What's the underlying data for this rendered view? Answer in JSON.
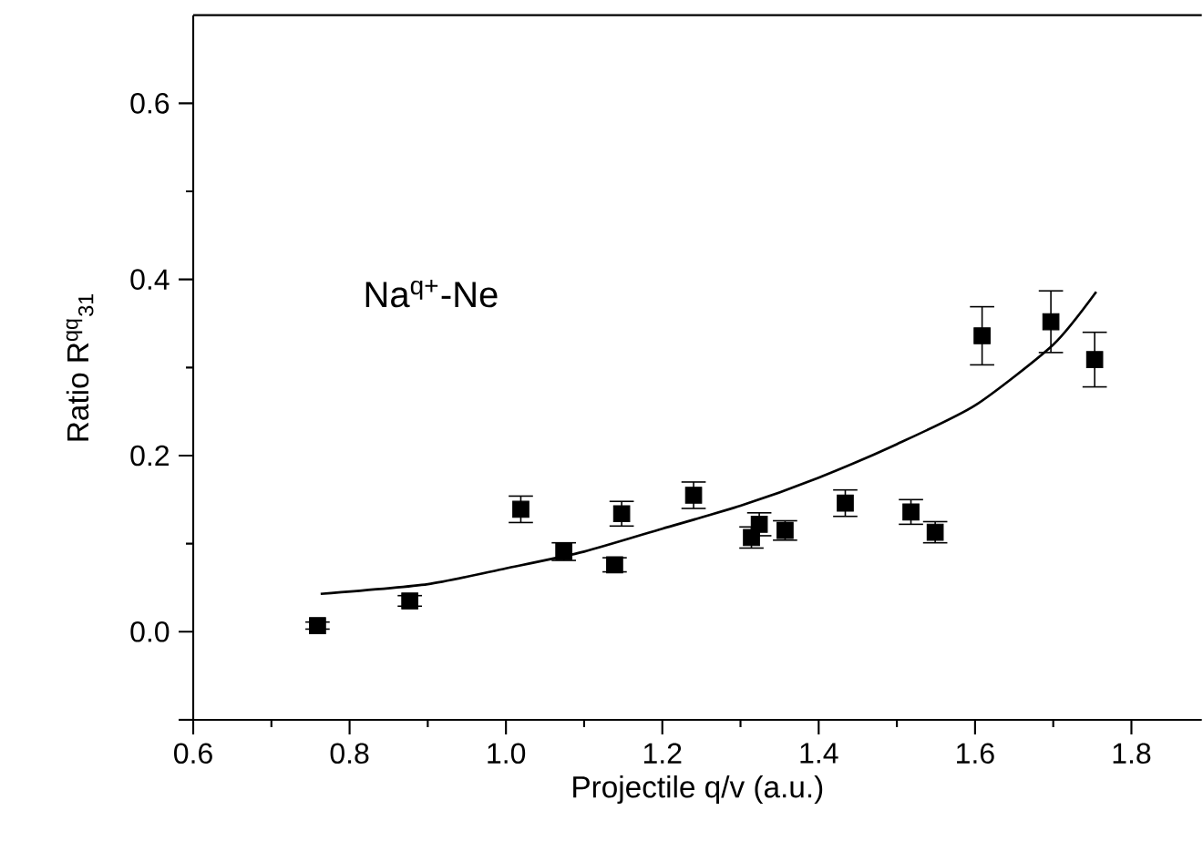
{
  "chart_data": {
    "type": "scatter",
    "xlabel": "Projectile q/v (a.u.)",
    "ylabel": "Ratio R$^{qq}$$_{31}$",
    "annotations": [
      "Na$^{q+}$-Ne"
    ],
    "xlim": [
      0.6,
      1.89
    ],
    "ylim": [
      -0.1,
      0.7
    ],
    "xticks": [
      {
        "value": 0.6,
        "label": "0.6"
      },
      {
        "value": 0.8,
        "label": "0.8"
      },
      {
        "value": 1.0,
        "label": "1.0"
      },
      {
        "value": 1.2,
        "label": "1.2"
      },
      {
        "value": 1.4,
        "label": "1.4"
      },
      {
        "value": 1.6,
        "label": "1.6"
      },
      {
        "value": 1.8,
        "label": "1.8"
      }
    ],
    "yticks": [
      {
        "value": 0.0,
        "label": "0.0"
      },
      {
        "value": 0.2,
        "label": "0.2"
      },
      {
        "value": 0.4,
        "label": "0.4"
      },
      {
        "value": 0.6,
        "label": "0.6"
      }
    ],
    "grid": false,
    "marker": "square",
    "series": [
      {
        "color": "#000000",
        "x": [
          0.759,
          0.877,
          1.019,
          1.074,
          1.139,
          1.148,
          1.24,
          1.314,
          1.324,
          1.357,
          1.434,
          1.518,
          1.549,
          1.609,
          1.697,
          1.753
        ],
        "values": [
          0.007,
          0.035,
          0.139,
          0.091,
          0.076,
          0.134,
          0.155,
          0.107,
          0.122,
          0.115,
          0.146,
          0.136,
          0.113,
          0.336,
          0.352,
          0.309
        ],
        "errors": [
          0.004,
          0.006,
          0.015,
          0.01,
          0.008,
          0.014,
          0.015,
          0.012,
          0.013,
          0.011,
          0.015,
          0.014,
          0.012,
          0.033,
          0.035,
          0.031
        ]
      },
      {
        "type": "line",
        "color": "#000000",
        "marker": "none",
        "x": [
          0.763,
          0.9,
          1.0,
          1.1,
          1.2,
          1.3,
          1.4,
          1.5,
          1.6,
          1.7,
          1.755
        ],
        "values": [
          0.043,
          0.054,
          0.072,
          0.091,
          0.117,
          0.143,
          0.175,
          0.213,
          0.257,
          0.326,
          0.386
        ]
      }
    ]
  }
}
